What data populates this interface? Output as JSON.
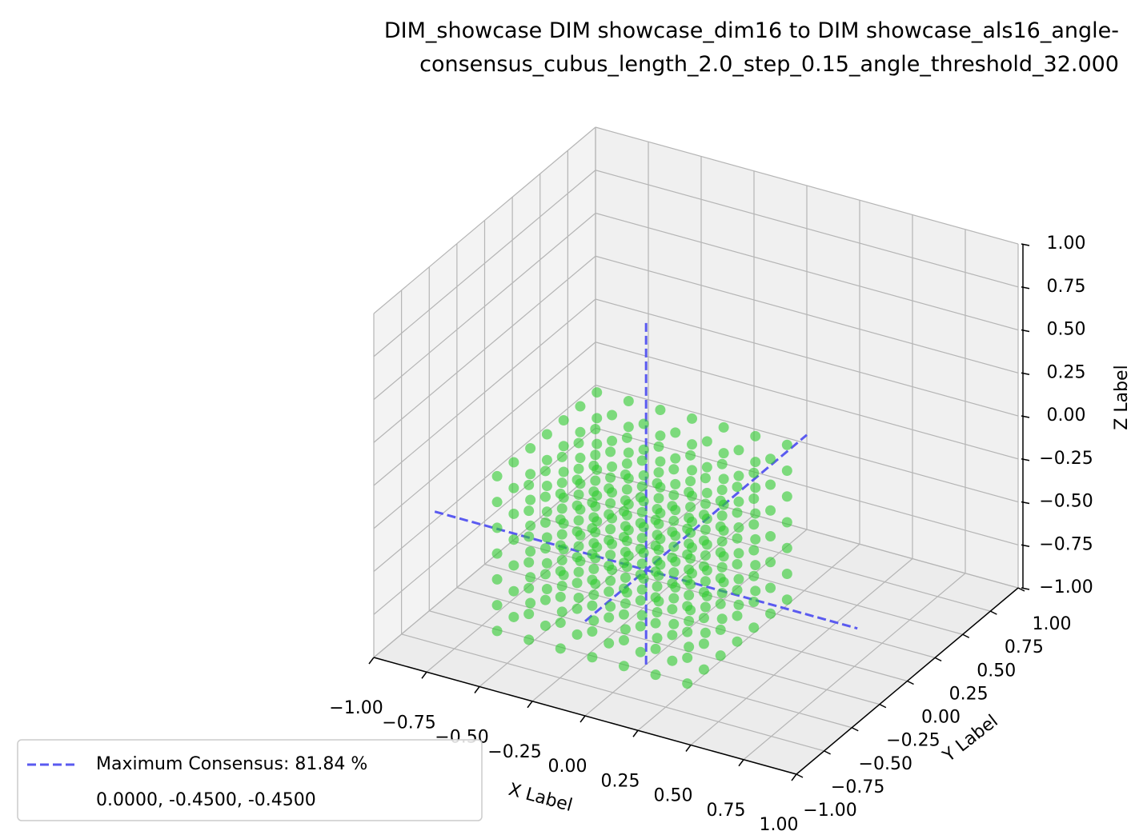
{
  "chart_data": {
    "type": "scatter3d",
    "title": "DIM_showcase DIM showcase_dim16 to DIM showcase_als16_angle-\nconsensus_cubus_length_2.0_step_0.15_angle_threshold_32.000",
    "xlabel": "X Label",
    "ylabel": "Y Label",
    "zlabel": "Z Label",
    "xlim": [
      -1,
      1
    ],
    "ylim": [
      -1,
      1
    ],
    "zlim": [
      -1,
      1
    ],
    "xticks": [
      {
        "value": -1,
        "label": "−1.00"
      },
      {
        "value": -0.75,
        "label": "−0.75"
      },
      {
        "value": -0.5,
        "label": "−0.50"
      },
      {
        "value": -0.25,
        "label": "−0.25"
      },
      {
        "value": 0,
        "label": "0.00"
      },
      {
        "value": 0.25,
        "label": "0.25"
      },
      {
        "value": 0.5,
        "label": "0.50"
      },
      {
        "value": 0.75,
        "label": "0.75"
      },
      {
        "value": 1,
        "label": "1.00"
      }
    ],
    "yticks": [
      {
        "value": -1,
        "label": "−1.00"
      },
      {
        "value": -0.75,
        "label": "−0.75"
      },
      {
        "value": -0.5,
        "label": "−0.50"
      },
      {
        "value": -0.25,
        "label": "−0.25"
      },
      {
        "value": 0,
        "label": "0.00"
      },
      {
        "value": 0.25,
        "label": "0.25"
      },
      {
        "value": 0.5,
        "label": "0.50"
      },
      {
        "value": 0.75,
        "label": "0.75"
      },
      {
        "value": 1,
        "label": "1.00"
      }
    ],
    "zticks": [
      {
        "value": -1,
        "label": "−1.00"
      },
      {
        "value": -0.75,
        "label": "−0.75"
      },
      {
        "value": -0.5,
        "label": "−0.50"
      },
      {
        "value": -0.25,
        "label": "−0.25"
      },
      {
        "value": 0,
        "label": "0.00"
      },
      {
        "value": 0.25,
        "label": "0.25"
      },
      {
        "value": 0.5,
        "label": "0.50"
      },
      {
        "value": 0.75,
        "label": "0.75"
      },
      {
        "value": 1,
        "label": "1.00"
      }
    ],
    "grid": true,
    "scatter": {
      "color": "#2ecc2e",
      "opacity": 0.6,
      "grid": {
        "x": [
          -0.6,
          -0.45,
          -0.3,
          -0.15,
          0,
          0.15,
          0.3
        ],
        "y": [
          -0.65,
          -0.5,
          -0.35,
          -0.2,
          -0.05,
          0.1,
          0.25
        ],
        "z": [
          -0.9,
          -0.75,
          -0.6,
          -0.45,
          -0.3,
          -0.15,
          0
        ]
      }
    },
    "consensus": {
      "name": "Maximum Consensus: 81.84 %",
      "color": "#5a5af0",
      "point": [
        0,
        -0.45,
        -0.45
      ],
      "point_label": "0.0000, -0.4500, -0.4500"
    },
    "legend_loc": "lower left"
  }
}
